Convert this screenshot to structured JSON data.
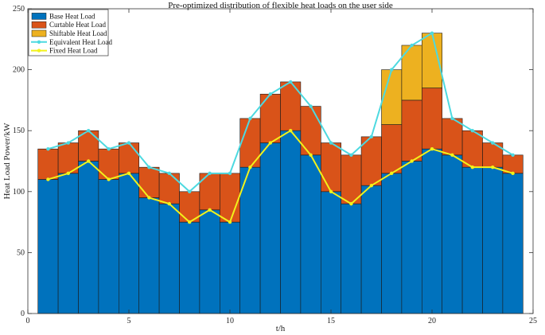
{
  "chart_data": {
    "type": "bar",
    "stacked": true,
    "title": "Pre-optimized distribution of flexible heat loads on the user side",
    "xlabel": "t/h",
    "ylabel": "Heat Load Power/kW",
    "xlim": [
      0,
      25
    ],
    "ylim": [
      0,
      250
    ],
    "xticks": [
      0,
      5,
      10,
      15,
      20,
      25
    ],
    "yticks": [
      0,
      50,
      100,
      150,
      200,
      250
    ],
    "x": [
      1,
      2,
      3,
      4,
      5,
      6,
      7,
      8,
      9,
      10,
      11,
      12,
      13,
      14,
      15,
      16,
      17,
      18,
      19,
      20,
      21,
      22,
      23,
      24
    ],
    "series": [
      {
        "name": "Base Heat Load",
        "kind": "bar",
        "color": "#0072BD",
        "values": [
          110,
          115,
          125,
          110,
          115,
          95,
          90,
          75,
          85,
          75,
          120,
          140,
          150,
          130,
          100,
          90,
          105,
          115,
          125,
          135,
          130,
          120,
          120,
          115
        ]
      },
      {
        "name": "Curtable Heat Load",
        "kind": "bar",
        "color": "#D95319",
        "values": [
          25,
          25,
          25,
          25,
          25,
          25,
          25,
          25,
          30,
          40,
          40,
          40,
          40,
          40,
          40,
          40,
          40,
          40,
          50,
          50,
          30,
          30,
          20,
          15
        ]
      },
      {
        "name": "Shiftable Heat Load",
        "kind": "bar",
        "color": "#EDB120",
        "values": [
          0,
          0,
          0,
          0,
          0,
          0,
          0,
          0,
          0,
          0,
          0,
          0,
          0,
          0,
          0,
          0,
          0,
          45,
          45,
          45,
          0,
          0,
          0,
          0
        ]
      },
      {
        "name": "Equivalent Heat Load",
        "kind": "line",
        "color": "#4DD9E0",
        "values": [
          135,
          140,
          150,
          135,
          140,
          120,
          115,
          100,
          115,
          115,
          160,
          180,
          190,
          170,
          140,
          130,
          145,
          200,
          220,
          230,
          160,
          150,
          140,
          130
        ]
      },
      {
        "name": "Fixed Heat Load",
        "kind": "line",
        "color": "#F2F21A",
        "values": [
          110,
          115,
          125,
          110,
          115,
          95,
          90,
          75,
          85,
          75,
          120,
          140,
          150,
          130,
          100,
          90,
          105,
          115,
          125,
          135,
          130,
          120,
          120,
          115
        ]
      }
    ],
    "legend_position": "top-left",
    "grid": false
  }
}
